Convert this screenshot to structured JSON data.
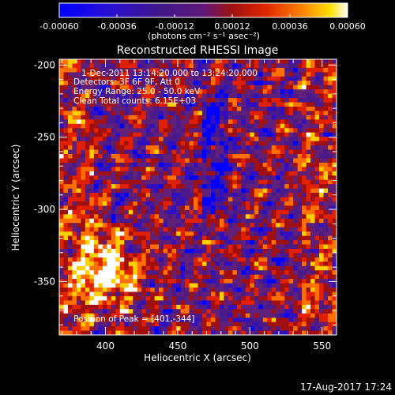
{
  "colorbar": {
    "ticks": [
      "-0.00060",
      "-0.00036",
      "-0.00012",
      "0.00012",
      "0.00036",
      "0.00060"
    ],
    "range": [
      -0.0006,
      0.0006
    ],
    "unit_label": "(photons cm⁻² s⁻¹ asec⁻²)",
    "colors": [
      "#0000ff",
      "#3010c0",
      "#4a1a8a",
      "#60207a",
      "#a01010",
      "#e02000",
      "#ff7000",
      "#ffd000",
      "#ffffff"
    ]
  },
  "chart_data": {
    "type": "heatmap",
    "title": "Reconstructed RHESSI Image",
    "xlabel": "Heliocentric X (arcsec)",
    "ylabel": "Heliocentric Y (arcsec)",
    "xlim": [
      368,
      560
    ],
    "ylim": [
      -387,
      -196
    ],
    "xticks": [
      400,
      450,
      500,
      550
    ],
    "yticks": [
      -200,
      -250,
      -300,
      -350
    ],
    "annotations": {
      "time_range": "1-Dec-2011 13:14:20.000 to 13:24:20.000",
      "detectors": "Detectors: 3F 6F 9F, Att 0",
      "energy": "Energy Range: 25.0 - 50.0 keV",
      "clean": "Clean    Total counts: 6.15E+03",
      "peak": "Position of Peak = [401,-344]"
    },
    "peak": [
      401,
      -344
    ]
  },
  "footer": {
    "timestamp": "17-Aug-2017 17:24"
  }
}
